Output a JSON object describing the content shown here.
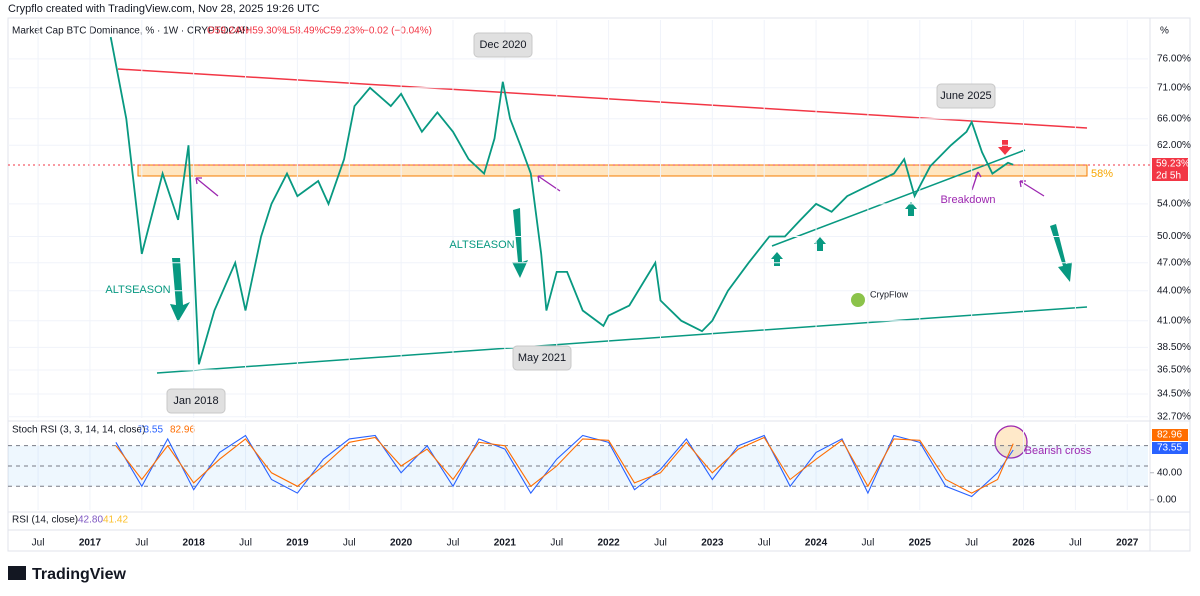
{
  "header": {
    "credit": "Crypflo created with TradingView.com, Nov 28, 2025 19:26 UTC",
    "percent_unit": "%",
    "watermark": "CrypFlow",
    "footer_logo": "TradingView"
  },
  "chart_data": [
    {
      "type": "line",
      "title": "Market Cap BTC Dominance, % · 1W · CRYPTOCAP",
      "ohlc": [
        "O59.24%",
        "H59.30%",
        "L58.49%",
        "C59.23%"
      ],
      "change": "−0.02 (−0.04%)",
      "last_value_label": "59.23%",
      "countdown": "2d 5h",
      "log_scale": true,
      "grid": true,
      "xlim": [
        2016.21,
        2027.2
      ],
      "xticks": [
        {
          "value": 2016.5,
          "label": "Jul"
        },
        2017,
        {
          "value": 2017.5,
          "label": "Jul"
        },
        2018,
        {
          "value": 2018.5,
          "label": "Jul"
        },
        2019,
        {
          "value": 2019.5,
          "label": "Jul"
        },
        2020,
        {
          "value": 2020.5,
          "label": "Jul"
        },
        2021,
        {
          "value": 2021.5,
          "label": "Jul"
        },
        2022,
        {
          "value": 2022.5,
          "label": "Jul"
        },
        2023,
        {
          "value": 2023.5,
          "label": "Jul"
        },
        2024,
        {
          "value": 2024.5,
          "label": "Jul"
        },
        2025,
        {
          "value": 2025.5,
          "label": "Jul"
        },
        2026,
        {
          "value": 2026.5,
          "label": "Jul"
        },
        2027
      ],
      "ylim": [
        32.6,
        83.3
      ],
      "yticks": [
        {
          "value": 76,
          "label": "76.00%"
        },
        {
          "value": 71,
          "label": "71.00%"
        },
        {
          "value": 66,
          "label": "66.00%"
        },
        {
          "value": 62,
          "label": "62.00%"
        },
        {
          "value": 54,
          "label": "54.00%"
        },
        {
          "value": 50,
          "label": "50.00%"
        },
        {
          "value": 47,
          "label": "47.00%"
        },
        {
          "value": 44,
          "label": "44.00%"
        },
        {
          "value": 41,
          "label": "41.00%"
        },
        {
          "value": 38.5,
          "label": "38.50%"
        },
        {
          "value": 36.5,
          "label": "36.50%"
        },
        {
          "value": 34.5,
          "label": "34.50%"
        },
        {
          "value": 32.7,
          "label": "32.70%"
        }
      ],
      "series": [
        {
          "color": "#089981",
          "x": [
            2017.2,
            2017.35,
            2017.5,
            2017.7,
            2017.85,
            2017.95,
            2018.05,
            2018.2,
            2018.4,
            2018.5,
            2018.65,
            2018.75,
            2018.9,
            2019.0,
            2019.2,
            2019.3,
            2019.45,
            2019.55,
            2019.7,
            2019.9,
            2020.0,
            2020.2,
            2020.35,
            2020.5,
            2020.65,
            2020.8,
            2020.9,
            2020.98,
            2021.05,
            2021.15,
            2021.25,
            2021.35,
            2021.4,
            2021.5,
            2021.6,
            2021.75,
            2021.95,
            2022.0,
            2022.2,
            2022.45,
            2022.5,
            2022.7,
            2022.9,
            2023.0,
            2023.15,
            2023.35,
            2023.55,
            2023.7,
            2023.85,
            2024.0,
            2024.15,
            2024.3,
            2024.45,
            2024.6,
            2024.75,
            2024.85,
            2024.95,
            2025.1,
            2025.3,
            2025.45,
            2025.5,
            2025.6,
            2025.7,
            2025.85,
            2025.9
          ],
          "values": [
            80,
            66,
            48,
            58,
            52,
            62,
            37,
            42,
            47,
            42,
            50,
            54,
            58,
            55,
            57,
            54,
            60,
            68,
            71,
            68,
            70,
            64,
            67,
            64,
            60,
            58,
            63,
            72,
            66,
            62,
            58,
            48,
            42,
            46,
            46,
            42,
            40.5,
            41.5,
            42.5,
            47,
            43,
            41,
            40,
            41,
            44,
            47,
            50,
            50,
            52,
            54,
            53,
            55,
            56,
            57,
            58,
            60,
            55,
            59,
            62,
            64,
            65.5,
            61,
            58,
            59.5,
            59.23
          ]
        }
      ],
      "annotations": [
        "Dec 2020",
        "June 2025",
        "Jan 2018",
        "May 2021",
        "ALTSEASON",
        "ALTSEASON",
        "Breakdown",
        "Bearish cross",
        "58%"
      ]
    },
    {
      "type": "line",
      "title": "Stoch RSI (3, 3, 14, 14, close)",
      "xlim": [
        2016.21,
        2027.2
      ],
      "ylim": [
        -15,
        112
      ],
      "yticks": [
        {
          "value": 40,
          "label": "40.00"
        },
        {
          "value": 0,
          "label": "0.00"
        }
      ],
      "bands": [
        20,
        50,
        80
      ],
      "series": [
        {
          "color": "#2962ff",
          "last_label": "73.55",
          "x": [
            2017.25,
            2017.5,
            2017.75,
            2018,
            2018.25,
            2018.5,
            2018.75,
            2019,
            2019.25,
            2019.5,
            2019.75,
            2020,
            2020.25,
            2020.5,
            2020.75,
            2021,
            2021.25,
            2021.5,
            2021.75,
            2022,
            2022.25,
            2022.5,
            2022.75,
            2023,
            2023.25,
            2023.5,
            2023.75,
            2024,
            2024.25,
            2024.5,
            2024.75,
            2025,
            2025.25,
            2025.5,
            2025.75,
            2025.9
          ],
          "values": [
            85,
            20,
            90,
            15,
            70,
            95,
            30,
            10,
            60,
            90,
            95,
            40,
            80,
            20,
            90,
            75,
            10,
            60,
            95,
            85,
            15,
            45,
            90,
            30,
            80,
            95,
            20,
            70,
            90,
            10,
            95,
            85,
            20,
            5,
            40,
            73.55
          ]
        },
        {
          "color": "#ff6d00",
          "last_label": "82.96",
          "x": [
            2017.25,
            2017.5,
            2017.75,
            2018,
            2018.25,
            2018.5,
            2018.75,
            2019,
            2019.25,
            2019.5,
            2019.75,
            2020,
            2020.25,
            2020.5,
            2020.75,
            2021,
            2021.25,
            2021.5,
            2021.75,
            2022,
            2022.25,
            2022.5,
            2022.75,
            2023,
            2023.25,
            2023.5,
            2023.75,
            2024,
            2024.25,
            2024.5,
            2024.75,
            2025,
            2025.25,
            2025.5,
            2025.75,
            2025.9
          ],
          "values": [
            80,
            30,
            80,
            25,
            60,
            90,
            40,
            20,
            50,
            85,
            92,
            50,
            75,
            30,
            85,
            80,
            20,
            50,
            90,
            88,
            25,
            40,
            85,
            40,
            75,
            92,
            30,
            60,
            88,
            20,
            90,
            88,
            30,
            10,
            30,
            82.96
          ]
        }
      ]
    }
  ],
  "rsi_panel": {
    "title": "RSI (14, close)",
    "values": [
      "42.80",
      "41.42"
    ]
  }
}
